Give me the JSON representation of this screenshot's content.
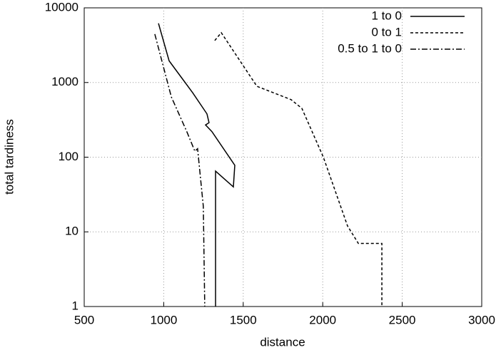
{
  "chart_data": {
    "type": "line",
    "x_label": "distance",
    "y_label": "total tardiness",
    "xlim": [
      500,
      3000
    ],
    "xticks": [
      500,
      1000,
      1500,
      2000,
      2500,
      3000
    ],
    "ylim": [
      1,
      10000
    ],
    "yticks": [
      1,
      10,
      100,
      1000,
      10000
    ],
    "log_y": true,
    "grid": true,
    "legend": "top-right",
    "series": [
      {
        "name": "1 to 0",
        "color": "#000000",
        "dash": "none",
        "x": [
          967,
          1034,
          1182,
          1272,
          1285,
          1263,
          1303,
          1447,
          1438,
          1326,
          1326
        ],
        "values": [
          6200,
          1950,
          730,
          380,
          290,
          270,
          220,
          78,
          40,
          65,
          1
        ]
      },
      {
        "name": "0 to 1",
        "color": "#000000",
        "dash": "4,3",
        "x": [
          1321,
          1362,
          1586,
          1801,
          1869,
          2004,
          2156,
          2224,
          2372,
          2372
        ],
        "values": [
          3650,
          4650,
          890,
          590,
          450,
          100,
          12,
          7,
          7,
          1
        ]
      },
      {
        "name": "0.5 to 1 to 0",
        "color": "#000000",
        "dash": "8,3,2,3",
        "x": [
          944,
          1048,
          1146,
          1196,
          1213,
          1249,
          1258
        ],
        "values": [
          4450,
          640,
          218,
          120,
          130,
          22,
          1
        ]
      }
    ]
  }
}
